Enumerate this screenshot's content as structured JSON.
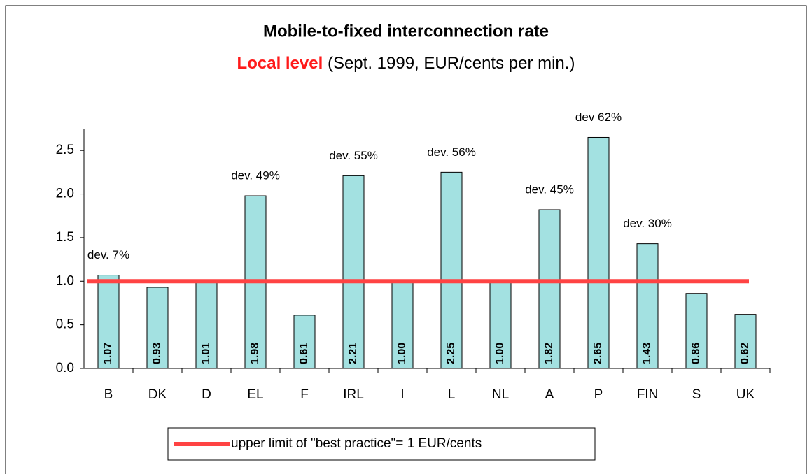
{
  "chart_data": {
    "type": "bar",
    "title": "Mobile-to-fixed interconnection rate",
    "subtitle_highlight": "Local level",
    "subtitle": "(Sept. 1999, EUR/cents per min.)",
    "categories": [
      "B",
      "DK",
      "D",
      "EL",
      "F",
      "IRL",
      "I",
      "L",
      "NL",
      "A",
      "P",
      "FIN",
      "S",
      "UK"
    ],
    "values": [
      1.07,
      0.93,
      1.01,
      1.98,
      0.61,
      2.21,
      1.0,
      2.25,
      1.0,
      1.82,
      2.65,
      1.43,
      0.86,
      0.62
    ],
    "value_labels": [
      "1.07",
      "0.93",
      "1.01",
      "1.98",
      "0.61",
      "2.21",
      "1.00",
      "2.25",
      "1.00",
      "1.82",
      "2.65",
      "1.43",
      "0.86",
      "0.62"
    ],
    "dev_labels": [
      "dev. 7%",
      null,
      null,
      "dev. 49%",
      null,
      "dev. 55%",
      null,
      "dev. 56%",
      null,
      "dev. 45%",
      "dev 62%",
      "dev. 30%",
      null,
      null
    ],
    "color": "#a3e1e1",
    "reference_line": {
      "name": "upper limit of \"best practice\"= 1 EUR/cents",
      "color": "#ff4343",
      "value": 1
    },
    "ylim": [
      0,
      2.75
    ],
    "yticks": [
      {
        "value": 0,
        "label": "0.0"
      },
      {
        "value": 0.5,
        "label": "0.5"
      },
      {
        "value": 1,
        "label": "1.0"
      },
      {
        "value": 1.5,
        "label": "1.5"
      },
      {
        "value": 2,
        "label": "2.0"
      },
      2.5
    ],
    "grid": false
  }
}
